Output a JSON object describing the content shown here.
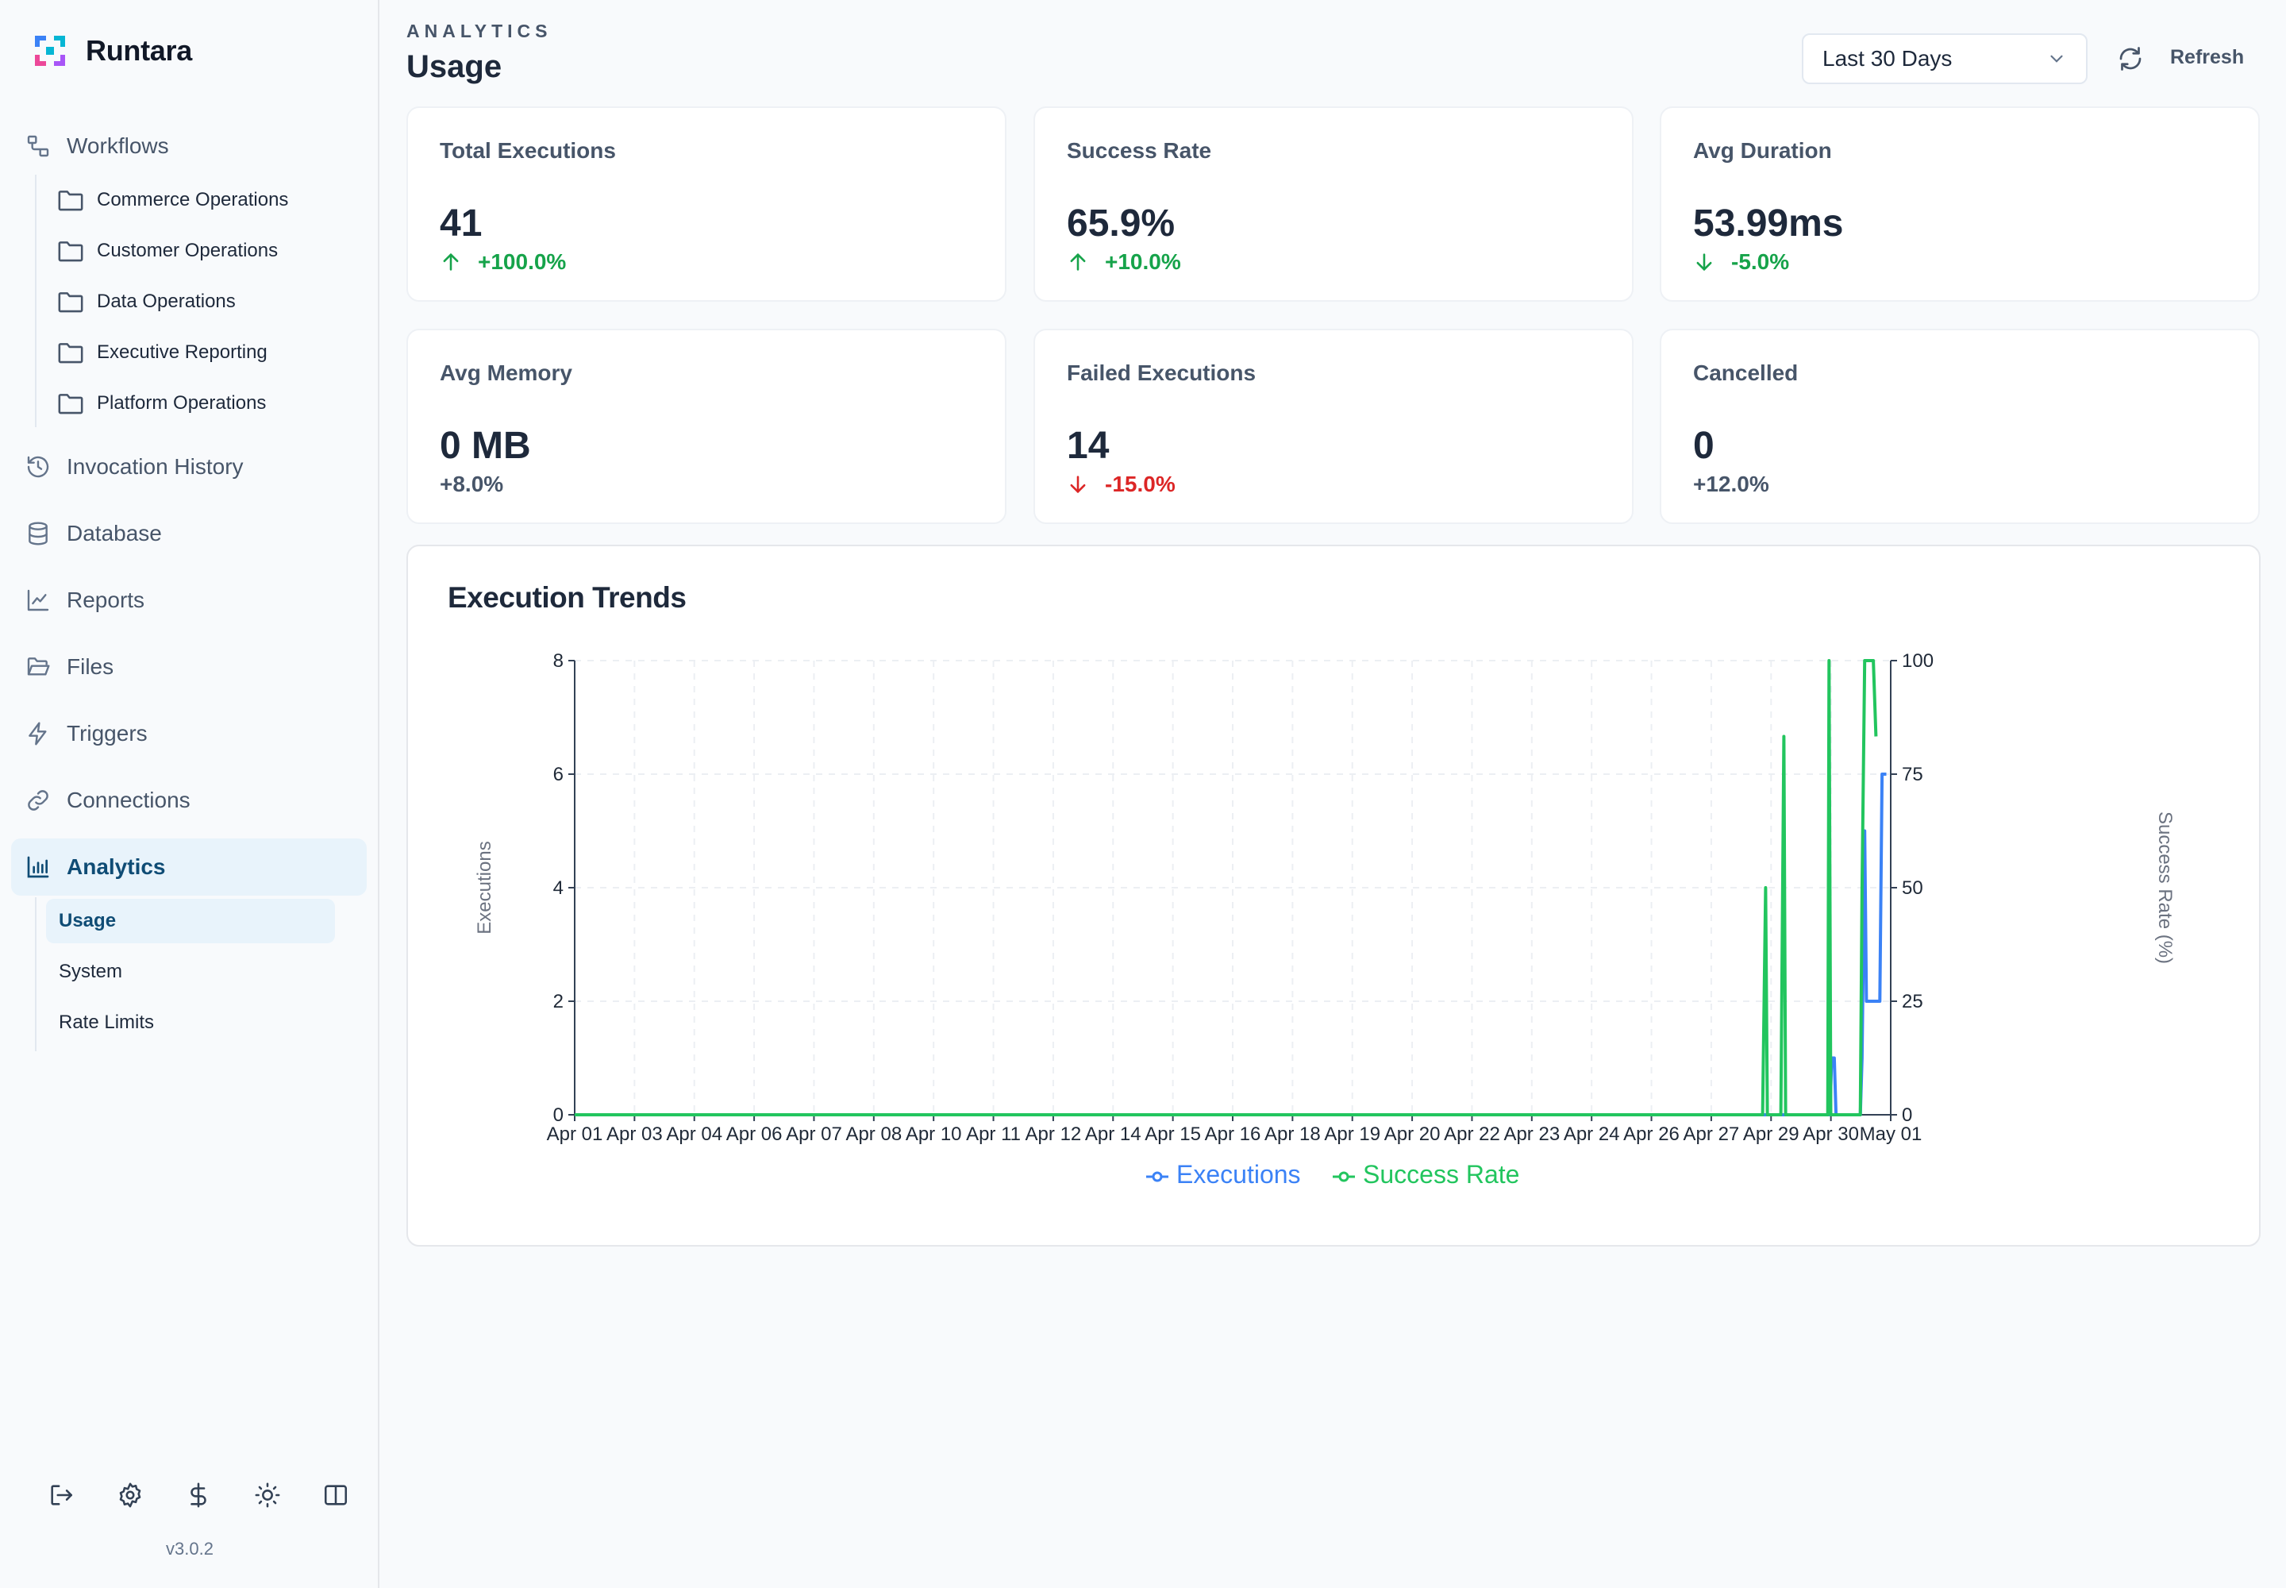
{
  "app": {
    "name": "Runtara",
    "version": "v3.0.2"
  },
  "colors": {
    "accent": "#0f4c75",
    "active_bg": "#e8f3fb",
    "executions": "#3b82f6",
    "success_rate": "#22c55e",
    "positive": "#16a34a",
    "negative": "#dc2626"
  },
  "sidebar": {
    "workflows": {
      "label": "Workflows",
      "icon": "workflow-icon",
      "folders": [
        {
          "label": "Commerce Operations",
          "icon": "folder-icon"
        },
        {
          "label": "Customer Operations",
          "icon": "folder-icon"
        },
        {
          "label": "Data Operations",
          "icon": "folder-icon"
        },
        {
          "label": "Executive Reporting",
          "icon": "folder-icon"
        },
        {
          "label": "Platform Operations",
          "icon": "folder-icon"
        }
      ]
    },
    "items": [
      {
        "label": "Invocation History",
        "icon": "history-icon"
      },
      {
        "label": "Database",
        "icon": "database-icon"
      },
      {
        "label": "Reports",
        "icon": "chart-line-icon"
      },
      {
        "label": "Files",
        "icon": "folder-open-icon"
      },
      {
        "label": "Triggers",
        "icon": "bolt-icon"
      },
      {
        "label": "Connections",
        "icon": "link-icon"
      }
    ],
    "analytics": {
      "label": "Analytics",
      "icon": "bar-chart-icon",
      "subitems": [
        {
          "label": "Usage",
          "active": true
        },
        {
          "label": "System",
          "active": false
        },
        {
          "label": "Rate Limits",
          "active": false
        }
      ]
    },
    "footer_icons": [
      "logout-icon",
      "settings-icon",
      "dollar-icon",
      "sun-icon",
      "sidebar-toggle-icon"
    ]
  },
  "header": {
    "eyebrow": "ANALYTICS",
    "title": "Usage",
    "range": {
      "selected": "Last 30 Days"
    },
    "refresh_label": "Refresh"
  },
  "stats": [
    {
      "label": "Total Executions",
      "value": "41",
      "delta": "+100.0%",
      "trend": "up"
    },
    {
      "label": "Success Rate",
      "value": "65.9%",
      "delta": "+10.0%",
      "trend": "up"
    },
    {
      "label": "Avg Duration",
      "value": "53.99ms",
      "delta": "-5.0%",
      "trend": "down-good"
    },
    {
      "label": "Avg Memory",
      "value": "0 MB",
      "delta": "+8.0%",
      "trend": "neutral"
    },
    {
      "label": "Failed Executions",
      "value": "14",
      "delta": "-15.0%",
      "trend": "down-bad"
    },
    {
      "label": "Cancelled",
      "value": "0",
      "delta": "+12.0%",
      "trend": "neutral"
    }
  ],
  "chart_data": {
    "type": "line",
    "title": "Execution Trends",
    "ylabel": "Executions",
    "y2label": "Success Rate (%)",
    "ylim": [
      0,
      8
    ],
    "y2lim": [
      0,
      100
    ],
    "yticks": [
      0,
      2,
      4,
      6,
      8
    ],
    "y2ticks": [
      0,
      25,
      50,
      75,
      100
    ],
    "x_tick_labels": [
      "Apr 01",
      "Apr 03",
      "Apr 04",
      "Apr 06",
      "Apr 07",
      "Apr 08",
      "Apr 10",
      "Apr 11",
      "Apr 12",
      "Apr 14",
      "Apr 15",
      "Apr 16",
      "Apr 18",
      "Apr 19",
      "Apr 20",
      "Apr 22",
      "Apr 23",
      "Apr 24",
      "Apr 26",
      "Apr 27",
      "Apr 29",
      "Apr 30",
      "May 01"
    ],
    "grid": true,
    "legend": "bottom-center",
    "x_domain_days": [
      0,
      30.3
    ],
    "series": [
      {
        "name": "Executions",
        "axis": "left",
        "color": "#3b82f6",
        "points": [
          [
            0,
            0
          ],
          [
            28.9,
            0
          ],
          [
            28.94,
            1
          ],
          [
            29.0,
            1
          ],
          [
            29.04,
            0
          ],
          [
            29.6,
            0
          ],
          [
            29.64,
            1
          ],
          [
            29.7,
            5
          ],
          [
            29.74,
            2
          ],
          [
            30.05,
            2
          ],
          [
            30.1,
            6
          ],
          [
            30.2,
            6
          ]
        ]
      },
      {
        "name": "Success Rate",
        "axis": "right",
        "color": "#22c55e",
        "points": [
          [
            0,
            0
          ],
          [
            27.35,
            0
          ],
          [
            27.42,
            50
          ],
          [
            27.46,
            0
          ],
          [
            27.77,
            0
          ],
          [
            27.84,
            83.3
          ],
          [
            27.88,
            0
          ],
          [
            28.85,
            0
          ],
          [
            28.88,
            100
          ],
          [
            28.92,
            0
          ],
          [
            29.0,
            0
          ],
          [
            29.6,
            0
          ],
          [
            29.64,
            50
          ],
          [
            29.7,
            100
          ],
          [
            29.75,
            100
          ],
          [
            29.9,
            100
          ],
          [
            29.96,
            83.3
          ]
        ]
      }
    ]
  }
}
